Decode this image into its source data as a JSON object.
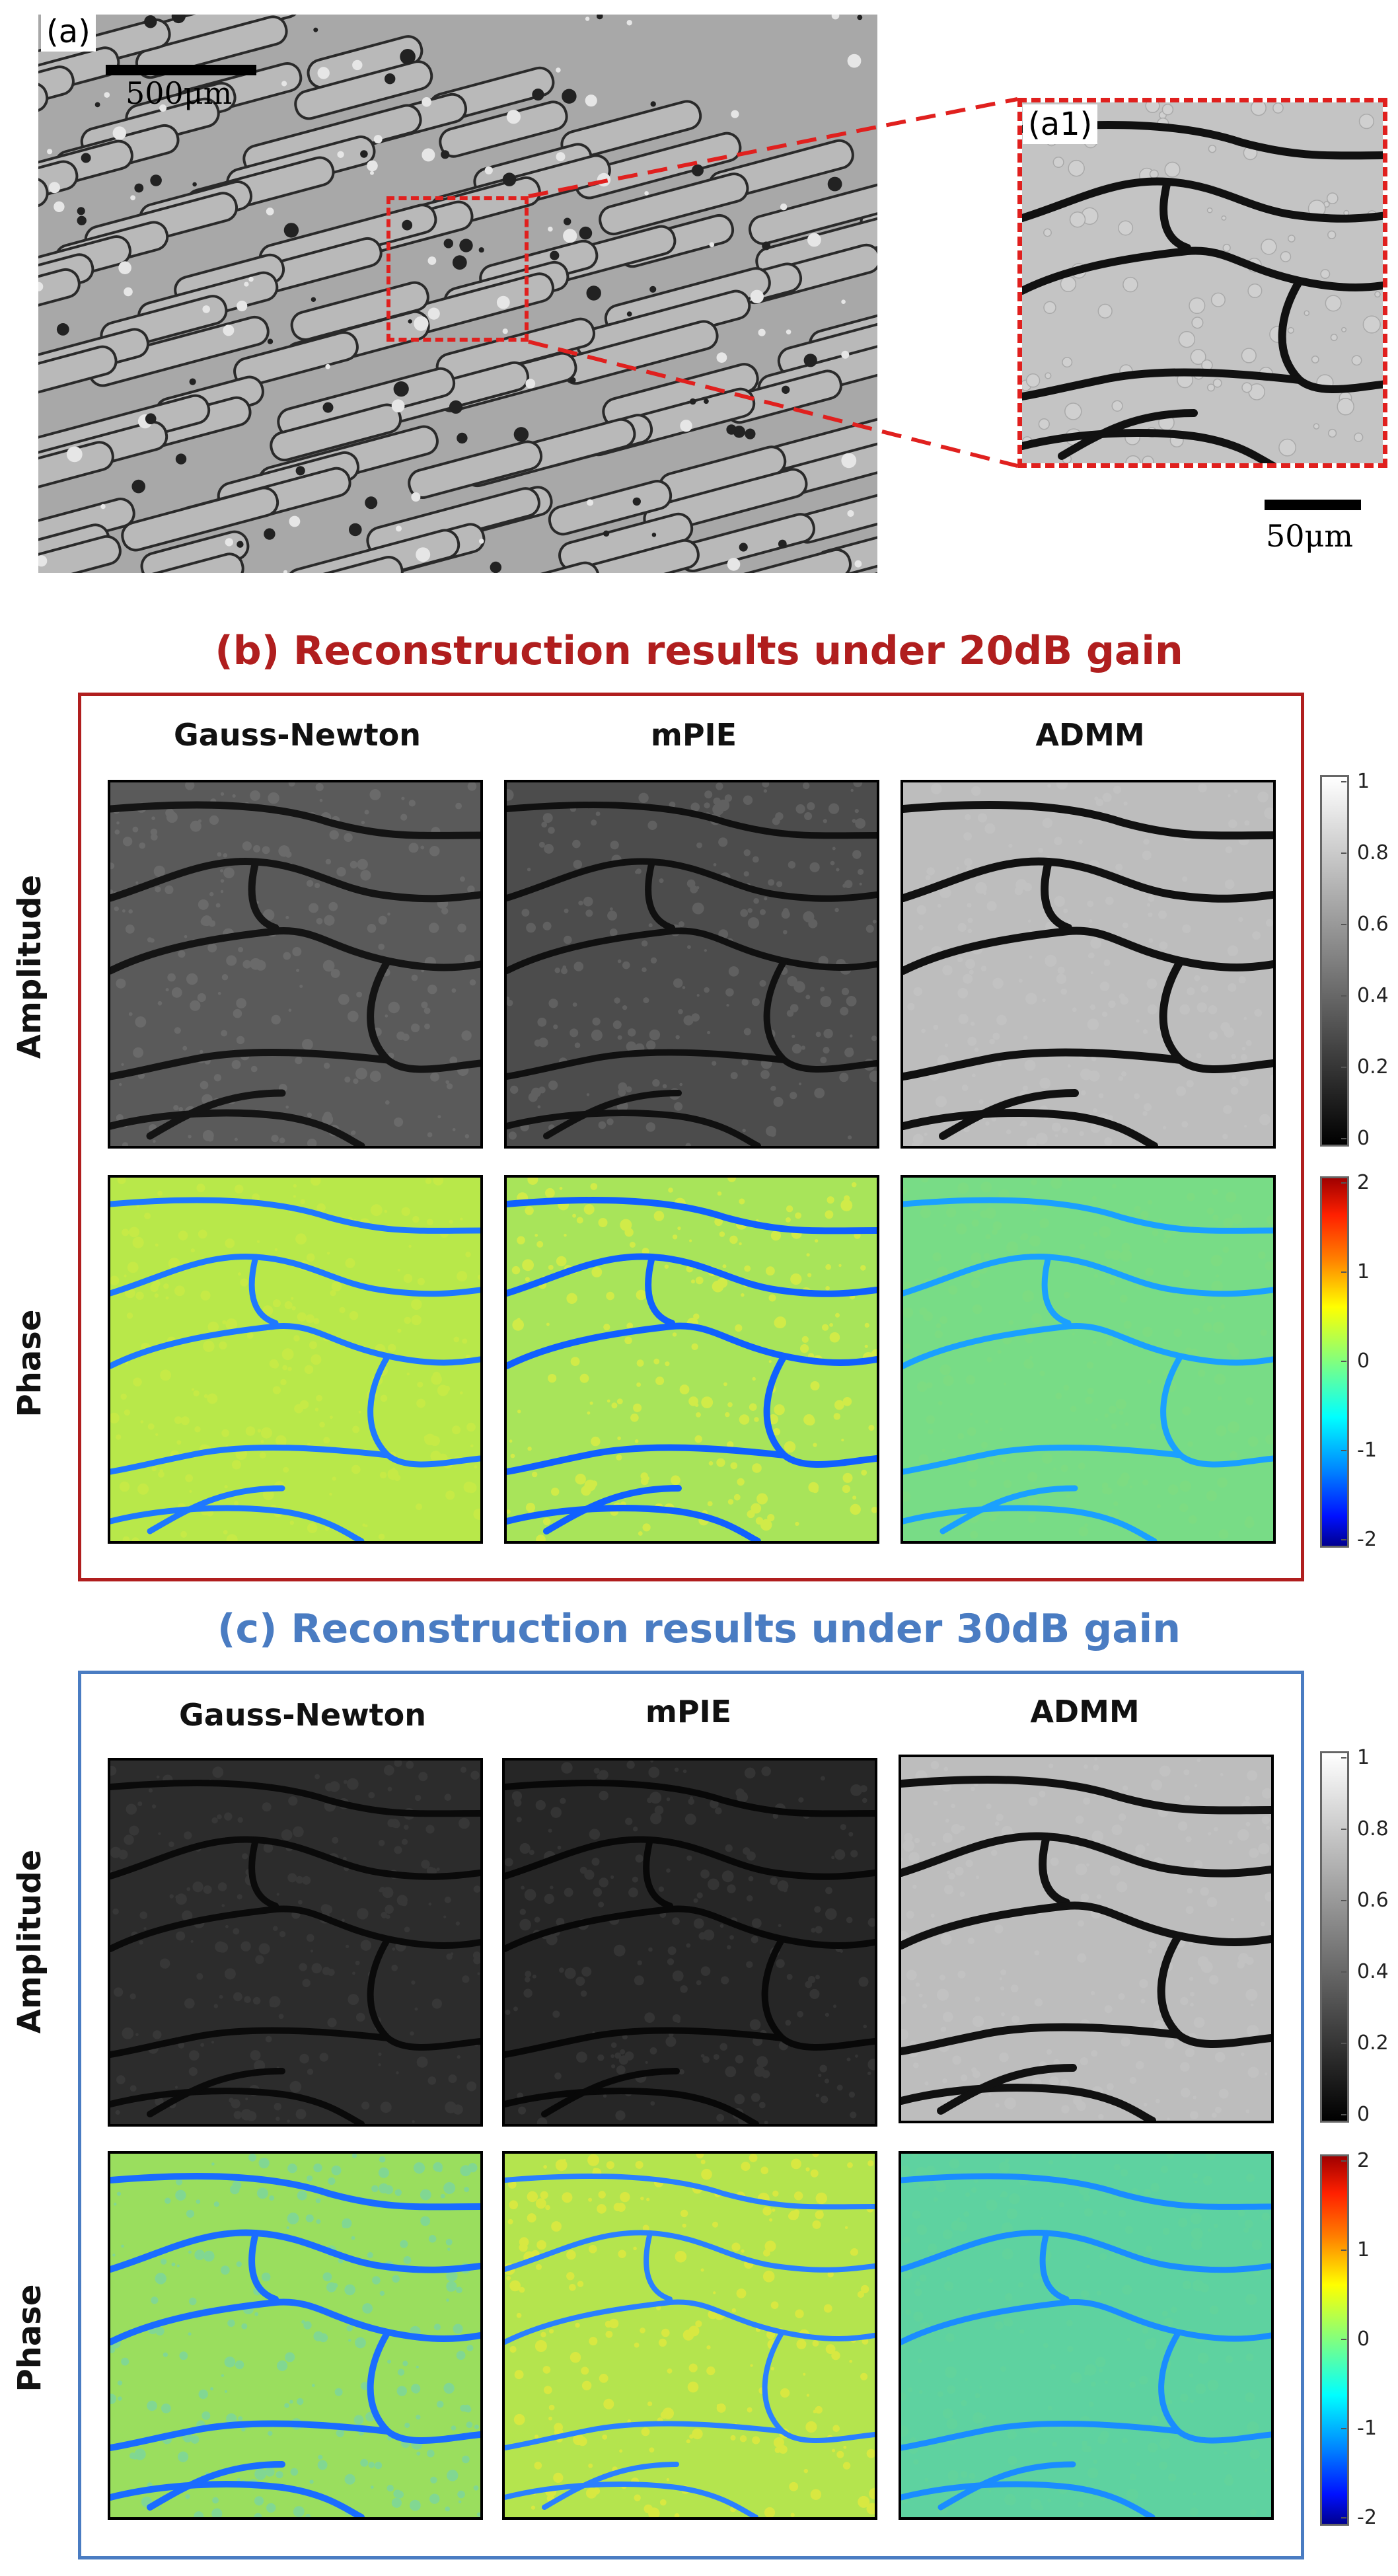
{
  "overview": {
    "panel_a_label": "(a)",
    "scalebar_a_text": "500μm",
    "panel_a1_label": "(a1)",
    "scalebar_a1_text": "50μm",
    "inset_color": "#e0201e"
  },
  "section_b": {
    "title": "(b) Reconstruction results under 20dB gain",
    "title_color": "#b01e1e",
    "border_color": "#b01e1e"
  },
  "section_c": {
    "title": "(c) Reconstruction results under 30dB gain",
    "title_color": "#4a7cc2",
    "border_color": "#4a7cc2"
  },
  "columns": [
    "Gauss-Newton",
    "mPIE",
    "ADMM"
  ],
  "rows": [
    "Amplitude",
    "Phase"
  ],
  "amplitude_colorbar": {
    "colormap": "gray",
    "ticks": [
      "1",
      "0.8",
      "0.6",
      "0.4",
      "0.2",
      "0"
    ]
  },
  "phase_colorbar": {
    "colormap": "jet",
    "ticks": [
      "2",
      "1",
      "0",
      "-1",
      "-2"
    ]
  }
}
